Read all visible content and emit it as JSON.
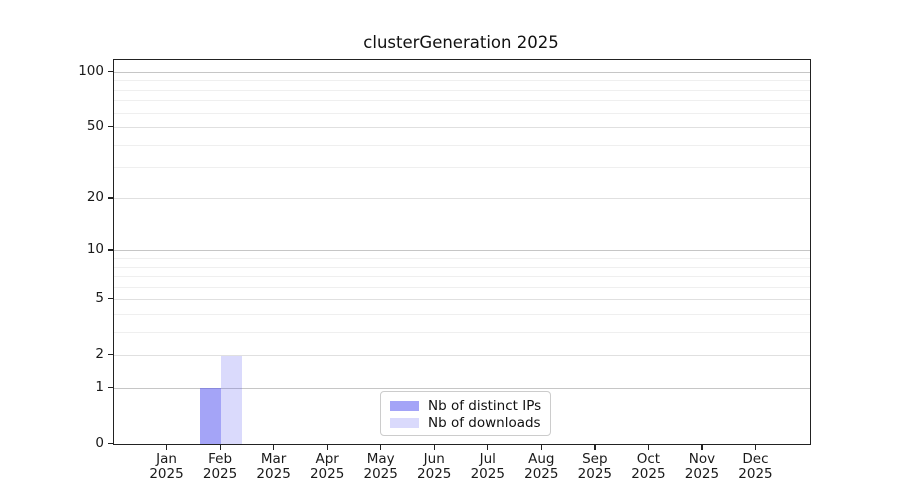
{
  "chart_data": {
    "type": "bar",
    "title": "clusterGeneration 2025",
    "x_months": [
      "Jan",
      "Feb",
      "Mar",
      "Apr",
      "May",
      "Jun",
      "Jul",
      "Aug",
      "Sep",
      "Oct",
      "Nov",
      "Dec"
    ],
    "x_year": "2025",
    "series": [
      {
        "name": "Nb of distinct IPs",
        "color": "rgba(80,80,240,0.52)",
        "values": [
          0,
          1,
          0,
          0,
          0,
          0,
          0,
          0,
          0,
          0,
          0,
          0
        ]
      },
      {
        "name": "Nb of downloads",
        "color": "rgba(80,80,240,0.21)",
        "values": [
          0,
          2,
          0,
          0,
          0,
          0,
          0,
          0,
          0,
          0,
          0,
          0
        ]
      }
    ],
    "y_scale": "log10(1+v)",
    "y_major_ticks": [
      0,
      1,
      2,
      5,
      10,
      20,
      50,
      100
    ],
    "y_power10_ticks": [
      1,
      10,
      100
    ],
    "y_minor_gridlines": [
      3,
      4,
      6,
      7,
      8,
      9,
      30,
      40,
      60,
      70,
      80,
      90
    ],
    "y_axis_top": 117,
    "legend_position": "lower center",
    "grid": "horizontal",
    "xlabel": "",
    "ylabel": ""
  },
  "legend": {
    "entries": [
      "Nb of distinct IPs",
      "Nb of downloads"
    ]
  },
  "colors": {
    "grid_power10": "#c6c6c6",
    "grid_major": "#e0e0e0",
    "grid_minor": "#efefef",
    "spine": "#222222",
    "text": "#1a1a1a",
    "legend_border": "#cccccc",
    "background": "#ffffff"
  }
}
